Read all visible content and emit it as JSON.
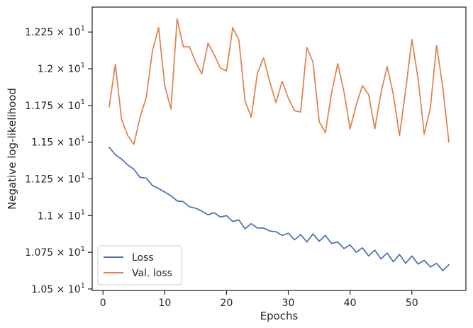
{
  "chart_data": {
    "type": "line",
    "xlabel": "Epochs",
    "ylabel": "Negative log-likelihood",
    "xlim": [
      -1.75,
      58.75
    ],
    "ylim": [
      10.49,
      12.42
    ],
    "xticks": [
      0,
      10,
      20,
      30,
      40,
      50
    ],
    "yticks": [
      {
        "value": 10.5,
        "label": "1.05 × 10"
      },
      {
        "value": 10.75,
        "label": "1.075 × 10"
      },
      {
        "value": 11.0,
        "label": "1.1 × 10"
      },
      {
        "value": 11.25,
        "label": "1.125 × 10"
      },
      {
        "value": 11.5,
        "label": "1.15 × 10"
      },
      {
        "value": 11.75,
        "label": "1.175 × 10"
      },
      {
        "value": 12.0,
        "label": "1.2 × 10"
      },
      {
        "value": 12.25,
        "label": "1.225 × 10"
      }
    ],
    "ytick_exponent": "1",
    "legend_position": "lower left",
    "x": [
      1,
      2,
      3,
      4,
      5,
      6,
      7,
      8,
      9,
      10,
      11,
      12,
      13,
      14,
      15,
      16,
      17,
      18,
      19,
      20,
      21,
      22,
      23,
      24,
      25,
      26,
      27,
      28,
      29,
      30,
      31,
      32,
      33,
      34,
      35,
      36,
      37,
      38,
      39,
      40,
      41,
      42,
      43,
      44,
      45,
      46,
      47,
      48,
      49,
      50,
      51,
      52,
      53,
      54,
      55,
      56
    ],
    "series": [
      {
        "name": "Loss",
        "color": "#4c72b0",
        "values": [
          11.465,
          11.415,
          11.385,
          11.345,
          11.315,
          11.26,
          11.255,
          11.205,
          11.185,
          11.16,
          11.135,
          11.1,
          11.095,
          11.06,
          11.05,
          11.03,
          11.005,
          11.02,
          10.99,
          11.0,
          10.96,
          10.97,
          10.91,
          10.945,
          10.915,
          10.915,
          10.895,
          10.89,
          10.865,
          10.88,
          10.835,
          10.87,
          10.82,
          10.875,
          10.825,
          10.865,
          10.81,
          10.82,
          10.775,
          10.8,
          10.75,
          10.78,
          10.725,
          10.765,
          10.705,
          10.745,
          10.685,
          10.735,
          10.675,
          10.725,
          10.67,
          10.695,
          10.65,
          10.675,
          10.625,
          10.665
        ]
      },
      {
        "name": "Val. loss",
        "color": "#dd8452",
        "values": [
          11.74,
          12.03,
          11.655,
          11.545,
          11.485,
          11.67,
          11.805,
          12.12,
          12.28,
          11.885,
          11.725,
          12.34,
          12.15,
          12.15,
          12.045,
          11.965,
          12.175,
          12.095,
          12.005,
          11.985,
          12.28,
          12.195,
          11.78,
          11.67,
          11.97,
          12.075,
          11.91,
          11.77,
          11.915,
          11.8,
          11.715,
          11.705,
          12.145,
          12.045,
          11.64,
          11.565,
          11.835,
          12.035,
          11.845,
          11.59,
          11.755,
          11.885,
          11.825,
          11.59,
          11.835,
          12.015,
          11.825,
          11.545,
          11.855,
          12.2,
          11.935,
          11.555,
          11.735,
          12.16,
          11.875,
          11.5
        ]
      }
    ]
  }
}
